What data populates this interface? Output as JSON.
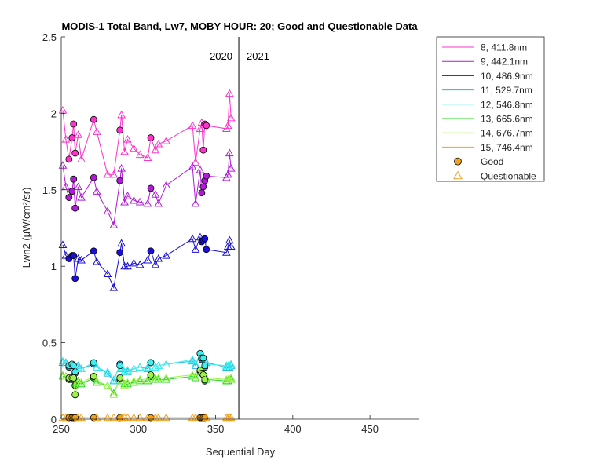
{
  "chart_data": {
    "type": "line",
    "title": "MODIS-1 Total Band, Lw7, MOBY HOUR: 20;  Good and Questionable Data",
    "xlabel": "Sequential Day",
    "ylabel": "Lwn2 (μW/cm²/sr)",
    "xlim": [
      250,
      482
    ],
    "ylim": [
      0,
      2.5
    ],
    "xticks": [
      250,
      300,
      350,
      400,
      450
    ],
    "yticks": [
      0,
      0.5,
      1,
      1.5,
      2,
      2.5
    ],
    "ytick_labels": [
      "0",
      "0.5",
      "1",
      "1.5",
      "2",
      "2.5"
    ],
    "year_divider": 365,
    "year_labels": [
      "2020",
      "2021"
    ],
    "grid": false,
    "legend_position": "outside-right",
    "x": [
      251,
      253,
      255,
      257,
      258,
      259,
      261,
      263,
      271,
      273,
      280,
      284,
      288,
      289,
      291,
      293,
      297,
      301,
      306,
      308,
      311,
      313,
      318,
      335,
      337,
      340,
      341,
      342,
      343,
      344,
      357,
      358,
      359,
      360
    ],
    "series": [
      {
        "name": "8, 411.8nm",
        "color": "#ff33cc",
        "values": [
          2.02,
          1.83,
          1.7,
          1.84,
          1.93,
          1.74,
          1.86,
          1.7,
          1.96,
          1.88,
          1.6,
          1.6,
          1.89,
          1.99,
          1.75,
          1.83,
          1.77,
          1.73,
          1.71,
          1.84,
          1.76,
          1.8,
          1.82,
          1.92,
          1.68,
          1.9,
          1.94,
          1.76,
          1.93,
          1.92,
          1.9,
          1.92,
          2.13,
          1.97
        ],
        "quality": [
          "Q",
          "Q",
          "G",
          "G",
          "G",
          "G",
          "Q",
          "Q",
          "G",
          "Q",
          "Q",
          "Q",
          "G",
          "Q",
          "Q",
          "Q",
          "Q",
          "Q",
          "Q",
          "G",
          "Q",
          "Q",
          "Q",
          "Q",
          "Q",
          "Q",
          "Q",
          "G",
          "G",
          "G",
          "Q",
          "Q",
          "Q",
          "Q"
        ]
      },
      {
        "name": "9, 442.1nm",
        "color": "#b01ad8",
        "values": [
          1.66,
          1.52,
          1.45,
          1.49,
          1.57,
          1.38,
          1.52,
          1.45,
          1.58,
          1.49,
          1.36,
          1.27,
          1.56,
          1.64,
          1.42,
          1.46,
          1.43,
          1.42,
          1.41,
          1.51,
          1.47,
          1.41,
          1.53,
          1.65,
          1.41,
          1.63,
          1.48,
          1.52,
          1.56,
          1.59,
          1.58,
          1.6,
          1.74,
          1.64
        ],
        "quality": [
          "Q",
          "Q",
          "G",
          "G",
          "G",
          "G",
          "Q",
          "Q",
          "G",
          "Q",
          "Q",
          "Q",
          "G",
          "Q",
          "Q",
          "Q",
          "Q",
          "Q",
          "Q",
          "G",
          "Q",
          "Q",
          "Q",
          "Q",
          "Q",
          "Q",
          "G",
          "G",
          "G",
          "G",
          "Q",
          "Q",
          "Q",
          "Q"
        ]
      },
      {
        "name": "10, 486.9nm",
        "color": "#1a0fd8",
        "values": [
          1.14,
          1.07,
          1.05,
          1.07,
          1.07,
          0.92,
          1.05,
          1.04,
          1.1,
          1.03,
          0.95,
          0.86,
          1.09,
          1.15,
          1.0,
          1.0,
          1.02,
          1.01,
          1.04,
          1.1,
          1.01,
          1.05,
          1.07,
          1.18,
          1.11,
          1.19,
          1.16,
          1.17,
          1.18,
          1.11,
          1.09,
          1.13,
          1.17,
          1.13
        ],
        "quality": [
          "Q",
          "Q",
          "G",
          "G",
          "G",
          "G",
          "Q",
          "Q",
          "G",
          "Q",
          "Q",
          "Q",
          "G",
          "Q",
          "Q",
          "Q",
          "Q",
          "Q",
          "Q",
          "G",
          "Q",
          "Q",
          "Q",
          "Q",
          "Q",
          "Q",
          "G",
          "G",
          "G",
          "G",
          "Q",
          "Q",
          "Q",
          "Q"
        ]
      },
      {
        "name": "11, 529.7nm",
        "color": "#29b2e6",
        "values": [
          0.37,
          0.37,
          0.34,
          0.35,
          0.35,
          0.3,
          0.35,
          0.33,
          0.36,
          0.34,
          0.3,
          0.25,
          0.36,
          0.33,
          0.31,
          0.31,
          0.33,
          0.34,
          0.33,
          0.37,
          0.34,
          0.35,
          0.36,
          0.38,
          0.35,
          0.43,
          0.39,
          0.4,
          0.34,
          0.37,
          0.34,
          0.34,
          0.34,
          0.35
        ],
        "quality": [
          "Q",
          "Q",
          "G",
          "G",
          "G",
          "G",
          "Q",
          "Q",
          "G",
          "Q",
          "Q",
          "Q",
          "G",
          "Q",
          "Q",
          "Q",
          "Q",
          "Q",
          "Q",
          "G",
          "Q",
          "Q",
          "Q",
          "Q",
          "Q",
          "G",
          "G",
          "G",
          "G",
          "Q",
          "Q",
          "Q",
          "Q",
          "Q"
        ]
      },
      {
        "name": "12, 546.8nm",
        "color": "#3cf0ee",
        "values": [
          0.38,
          0.36,
          0.35,
          0.36,
          0.35,
          0.31,
          0.34,
          0.33,
          0.37,
          0.34,
          0.31,
          0.26,
          0.35,
          0.34,
          0.31,
          0.32,
          0.33,
          0.34,
          0.34,
          0.37,
          0.34,
          0.35,
          0.36,
          0.39,
          0.36,
          0.43,
          0.4,
          0.4,
          0.35,
          0.36,
          0.35,
          0.35,
          0.35,
          0.36
        ],
        "quality": [
          "Q",
          "Q",
          "G",
          "G",
          "G",
          "G",
          "Q",
          "Q",
          "G",
          "Q",
          "Q",
          "Q",
          "G",
          "Q",
          "Q",
          "Q",
          "Q",
          "Q",
          "Q",
          "G",
          "Q",
          "Q",
          "Q",
          "Q",
          "Q",
          "G",
          "G",
          "G",
          "G",
          "Q",
          "Q",
          "Q",
          "Q",
          "Q"
        ]
      },
      {
        "name": "13, 665.6nm",
        "color": "#1fd81f",
        "values": [
          0.28,
          0.28,
          0.26,
          0.26,
          0.26,
          0.22,
          0.25,
          0.23,
          0.27,
          0.24,
          0.22,
          0.17,
          0.26,
          0.25,
          0.23,
          0.23,
          0.24,
          0.25,
          0.25,
          0.28,
          0.26,
          0.26,
          0.26,
          0.28,
          0.27,
          0.31,
          0.3,
          0.29,
          0.25,
          0.26,
          0.25,
          0.25,
          0.26,
          0.26
        ],
        "quality": [
          "Q",
          "Q",
          "G",
          "G",
          "G",
          "G",
          "Q",
          "Q",
          "G",
          "Q",
          "Q",
          "Q",
          "G",
          "Q",
          "Q",
          "Q",
          "Q",
          "Q",
          "Q",
          "G",
          "Q",
          "Q",
          "Q",
          "Q",
          "Q",
          "G",
          "G",
          "G",
          "G",
          "Q",
          "Q",
          "Q",
          "Q",
          "Q"
        ]
      },
      {
        "name": "14, 676.7nm",
        "color": "#9ef24b",
        "values": [
          0.29,
          0.28,
          0.27,
          0.27,
          0.27,
          0.16,
          0.24,
          0.24,
          0.28,
          0.25,
          0.22,
          0.16,
          0.27,
          0.26,
          0.22,
          0.24,
          0.25,
          0.26,
          0.26,
          0.29,
          0.27,
          0.27,
          0.27,
          0.29,
          0.28,
          0.32,
          0.3,
          0.29,
          0.26,
          0.27,
          0.26,
          0.26,
          0.26,
          0.27
        ],
        "quality": [
          "Q",
          "Q",
          "G",
          "G",
          "G",
          "G",
          "Q",
          "Q",
          "G",
          "Q",
          "Q",
          "Q",
          "G",
          "Q",
          "Q",
          "Q",
          "Q",
          "Q",
          "Q",
          "G",
          "Q",
          "Q",
          "Q",
          "Q",
          "Q",
          "G",
          "G",
          "G",
          "G",
          "Q",
          "Q",
          "Q",
          "Q",
          "Q"
        ]
      },
      {
        "name": "15, 746.4nm",
        "color": "#f5a21a",
        "values": [
          0.01,
          0.01,
          0.01,
          0.01,
          0.01,
          0.01,
          0.01,
          0.01,
          0.01,
          0.01,
          0.01,
          0.01,
          0.01,
          0.01,
          0.01,
          0.01,
          0.01,
          0.01,
          0.01,
          0.01,
          0.01,
          0.01,
          0.01,
          0.01,
          0.01,
          0.01,
          0.01,
          0.01,
          0.01,
          0.01,
          0.01,
          0.01,
          0.01,
          0.01
        ],
        "quality": [
          "Q",
          "Q",
          "G",
          "G",
          "G",
          "G",
          "Q",
          "Q",
          "G",
          "Q",
          "Q",
          "Q",
          "G",
          "Q",
          "Q",
          "Q",
          "Q",
          "Q",
          "Q",
          "G",
          "Q",
          "Q",
          "Q",
          "Q",
          "Q",
          "G",
          "G",
          "G",
          "G",
          "Q",
          "Q",
          "Q",
          "Q",
          "Q"
        ]
      }
    ],
    "marker_legend": [
      {
        "name": "Good",
        "marker": "circle",
        "color": "#f5a21a"
      },
      {
        "name": "Questionable",
        "marker": "triangle",
        "color": "#f5a21a"
      }
    ]
  }
}
